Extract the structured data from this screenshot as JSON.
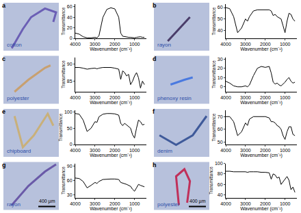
{
  "chart_data": [
    {
      "type": "line",
      "panel_label": "a",
      "sample": "cotton",
      "x_label": "Wavenumber (cm⁻¹)",
      "y_label": "Transmittance",
      "color": "#000000",
      "grid": false,
      "x": [
        4000,
        3800,
        3600,
        3400,
        3200,
        3000,
        2900,
        2800,
        2600,
        2400,
        2200,
        2000,
        1800,
        1700,
        1600,
        1500,
        1400,
        1300,
        1200,
        1100,
        1000,
        900,
        800,
        700,
        600,
        500
      ],
      "values": [
        10,
        8,
        3,
        1,
        1,
        2,
        1,
        5,
        40,
        55,
        58,
        56,
        40,
        10,
        4,
        3,
        3,
        2,
        2,
        1,
        1,
        2,
        3,
        3,
        2,
        2
      ],
      "xlim": [
        4000,
        400
      ],
      "xticks": [
        4000,
        3000,
        2000,
        1000
      ],
      "ylim": [
        0,
        65
      ],
      "yticks": [
        0,
        20,
        40,
        60
      ]
    },
    {
      "type": "line",
      "panel_label": "b",
      "sample": "rayon",
      "x_label": "Wavenumber (cm⁻¹)",
      "y_label": "Transmittance",
      "color": "#000000",
      "grid": false,
      "x": [
        4000,
        3800,
        3600,
        3400,
        3200,
        3000,
        2900,
        2800,
        2600,
        2400,
        2200,
        2000,
        1800,
        1700,
        1600,
        1500,
        1400,
        1300,
        1200,
        1100,
        1000,
        900,
        800,
        700,
        600,
        500
      ],
      "values": [
        60,
        59,
        52,
        38,
        42,
        50,
        48,
        52,
        57,
        58,
        58,
        58,
        58,
        57,
        53,
        54,
        52,
        51,
        50,
        44,
        38,
        48,
        55,
        54,
        50,
        48
      ],
      "xlim": [
        4000,
        400
      ],
      "xticks": [
        4000,
        3000,
        2000,
        1000
      ],
      "ylim": [
        33,
        63
      ],
      "yticks": [
        40,
        50,
        60
      ]
    },
    {
      "type": "line",
      "panel_label": "c",
      "sample": "polyester",
      "x_label": "Wavenumber (cm⁻¹)",
      "y_label": "Transmittance",
      "color": "#000000",
      "grid": false,
      "x": [
        4000,
        3800,
        3600,
        3400,
        3200,
        3000,
        2900,
        2800,
        2600,
        2400,
        2200,
        2000,
        1800,
        1700,
        1600,
        1500,
        1400,
        1300,
        1200,
        1100,
        1000,
        900,
        800,
        700,
        600,
        500
      ],
      "values": [
        89,
        89,
        88.8,
        88.5,
        88.7,
        88.8,
        88.6,
        88.8,
        89,
        89,
        89,
        88.8,
        88.5,
        85.5,
        88,
        87.5,
        86.5,
        87,
        84,
        85,
        86.5,
        87.5,
        86,
        83,
        85,
        84
      ],
      "xlim": [
        4000,
        400
      ],
      "xticks": [
        4000,
        3000,
        2000,
        1000
      ],
      "ylim": [
        82,
        92
      ],
      "yticks": [
        85,
        90
      ]
    },
    {
      "type": "line",
      "panel_label": "d",
      "sample": "phenoxy resin",
      "x_label": "Wavenumber (cm⁻¹)",
      "y_label": "Transmittance",
      "color": "#000000",
      "grid": false,
      "x": [
        4000,
        3800,
        3600,
        3400,
        3200,
        3000,
        2900,
        2800,
        2600,
        2400,
        2200,
        2000,
        1800,
        1700,
        1600,
        1500,
        1400,
        1300,
        1200,
        1100,
        1000,
        900,
        800,
        700,
        600,
        500
      ],
      "values": [
        6,
        4,
        1,
        0,
        0,
        1,
        0,
        2,
        12,
        20,
        22,
        21,
        22,
        15,
        5,
        3,
        4,
        2,
        1,
        3,
        5,
        8,
        10,
        6,
        4,
        5
      ],
      "xlim": [
        4000,
        400
      ],
      "xticks": [
        4000,
        3000,
        2000,
        1000
      ],
      "ylim": [
        -5,
        32
      ],
      "yticks": [
        0,
        10,
        20,
        30
      ]
    },
    {
      "type": "line",
      "panel_label": "e",
      "sample": "chipboard",
      "x_label": "Wavenumber (cm⁻¹)",
      "y_label": "Transmittance",
      "color": "#000000",
      "grid": false,
      "x": [
        4000,
        3800,
        3600,
        3400,
        3200,
        3000,
        2900,
        2800,
        2600,
        2400,
        2200,
        2000,
        1800,
        1700,
        1600,
        1500,
        1400,
        1300,
        1200,
        1100,
        1000,
        900,
        800,
        700,
        600,
        500
      ],
      "values": [
        95,
        93,
        75,
        40,
        50,
        70,
        68,
        85,
        93,
        95,
        95,
        94,
        90,
        65,
        58,
        65,
        60,
        55,
        50,
        30,
        20,
        50,
        75,
        70,
        60,
        62
      ],
      "xlim": [
        4000,
        400
      ],
      "xticks": [
        4000,
        3000,
        2000,
        1000
      ],
      "ylim": [
        0,
        105
      ],
      "yticks": [
        0,
        50,
        100
      ]
    },
    {
      "type": "line",
      "panel_label": "f",
      "sample": "denim",
      "x_label": "Wavenumber (cm⁻¹)",
      "y_label": "Transmittance",
      "color": "#000000",
      "grid": false,
      "x": [
        4000,
        3800,
        3600,
        3400,
        3200,
        3000,
        2900,
        2800,
        2600,
        2400,
        2200,
        2000,
        1800,
        1700,
        1600,
        1500,
        1400,
        1300,
        1200,
        1100,
        1000,
        900,
        800,
        700,
        600,
        500
      ],
      "values": [
        70,
        70,
        66,
        55,
        58,
        65,
        63,
        68,
        70,
        70,
        70,
        70,
        69,
        66,
        66,
        65,
        63,
        62,
        60,
        55,
        52,
        58,
        62,
        62,
        56,
        55
      ],
      "xlim": [
        4000,
        400
      ],
      "xticks": [
        4000,
        3000,
        2000,
        1000
      ],
      "ylim": [
        48,
        75
      ],
      "yticks": [
        50,
        60,
        70
      ]
    },
    {
      "type": "line",
      "panel_label": "g",
      "sample": "rayon",
      "scale_bar": "400 µm",
      "x_label": "Wavenumber (cm⁻¹)",
      "y_label": "Transmittance",
      "color": "#000000",
      "grid": false,
      "x": [
        4000,
        3800,
        3600,
        3400,
        3200,
        3000,
        2900,
        2800,
        2600,
        2400,
        2200,
        2000,
        1800,
        1700,
        1600,
        1500,
        1400,
        1300,
        1200,
        1100,
        1000,
        900,
        800,
        700,
        600,
        500
      ],
      "values": [
        65,
        64,
        58,
        45,
        50,
        56,
        54,
        58,
        62,
        63,
        63,
        63,
        62,
        56,
        55,
        54,
        52,
        50,
        48,
        42,
        38,
        45,
        52,
        50,
        48,
        47
      ],
      "xlim": [
        4000,
        400
      ],
      "xticks": [
        4000,
        3000,
        2000,
        1000
      ],
      "ylim": [
        25,
        95
      ],
      "yticks": [
        30,
        60,
        90
      ]
    },
    {
      "type": "line",
      "panel_label": "h",
      "sample": "polyester",
      "scale_bar": "400 µm",
      "x_label": "Wavenumber (cm⁻¹)",
      "y_label": "Transmittance",
      "color": "#000000",
      "grid": false,
      "x": [
        4000,
        3800,
        3600,
        3400,
        3200,
        3000,
        2900,
        2800,
        2600,
        2400,
        2200,
        2000,
        1800,
        1700,
        1600,
        1500,
        1400,
        1300,
        1200,
        1100,
        1000,
        900,
        800,
        700,
        600,
        500
      ],
      "values": [
        85,
        85,
        84,
        84,
        84,
        84,
        83,
        84,
        84,
        84,
        83,
        83,
        82,
        70,
        80,
        78,
        72,
        74,
        60,
        65,
        70,
        75,
        68,
        50,
        55,
        45
      ],
      "xlim": [
        4000,
        400
      ],
      "xticks": [
        4000,
        3000,
        2000,
        1000
      ],
      "ylim": [
        35,
        100
      ],
      "yticks": [
        40,
        60,
        80,
        100
      ]
    }
  ]
}
